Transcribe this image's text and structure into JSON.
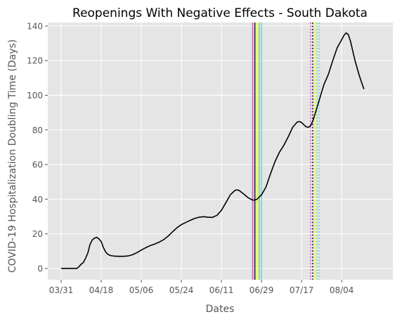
{
  "chart_data": {
    "type": "line",
    "title": "Reopenings With Negative Effects - South Dakota",
    "xlabel": "Dates",
    "ylabel": "COVID-19 Hospitalization Doubling Time (Days)",
    "ylim": [
      -6.5,
      142
    ],
    "xlim": [
      "2020-03-25",
      "2020-08-27"
    ],
    "x_ticks": [
      "2020-03-31",
      "2020-04-18",
      "2020-05-06",
      "2020-05-24",
      "2020-06-11",
      "2020-06-29",
      "2020-07-17",
      "2020-08-04"
    ],
    "x_tick_labels": [
      "03/31",
      "04/18",
      "05/06",
      "05/24",
      "06/11",
      "06/29",
      "07/17",
      "08/04"
    ],
    "y_ticks": [
      0,
      20,
      40,
      60,
      80,
      100,
      120,
      140
    ],
    "y_tick_labels": [
      "0",
      "20",
      "40",
      "60",
      "80",
      "100",
      "120",
      "140"
    ],
    "grid": true,
    "background": "#e5e5e5",
    "series": [
      {
        "color": "#000000",
        "points": [
          [
            "2020-03-31",
            0
          ],
          [
            "2020-04-01",
            0
          ],
          [
            "2020-04-03",
            0
          ],
          [
            "2020-04-05",
            0
          ],
          [
            "2020-04-07",
            0
          ],
          [
            "2020-04-08",
            1
          ],
          [
            "2020-04-09",
            2.5
          ],
          [
            "2020-04-10",
            3.5
          ],
          [
            "2020-04-11",
            6
          ],
          [
            "2020-04-12",
            9
          ],
          [
            "2020-04-13",
            14
          ],
          [
            "2020-04-14",
            16.5
          ],
          [
            "2020-04-15",
            17.5
          ],
          [
            "2020-04-16",
            18
          ],
          [
            "2020-04-17",
            17
          ],
          [
            "2020-04-18",
            15.5
          ],
          [
            "2020-04-19",
            12
          ],
          [
            "2020-04-20",
            9.5
          ],
          [
            "2020-04-21",
            8.2
          ],
          [
            "2020-04-22",
            7.5
          ],
          [
            "2020-04-24",
            7.1
          ],
          [
            "2020-04-26",
            7
          ],
          [
            "2020-04-28",
            7
          ],
          [
            "2020-04-30",
            7.2
          ],
          [
            "2020-05-02",
            7.9
          ],
          [
            "2020-05-04",
            9.1
          ],
          [
            "2020-05-06",
            10.6
          ],
          [
            "2020-05-08",
            12
          ],
          [
            "2020-05-10",
            13.2
          ],
          [
            "2020-05-12",
            14.1
          ],
          [
            "2020-05-14",
            15.2
          ],
          [
            "2020-05-16",
            16.6
          ],
          [
            "2020-05-18",
            18.6
          ],
          [
            "2020-05-20",
            21.1
          ],
          [
            "2020-05-22",
            23.5
          ],
          [
            "2020-05-24",
            25.3
          ],
          [
            "2020-05-26",
            26.6
          ],
          [
            "2020-05-28",
            27.8
          ],
          [
            "2020-05-30",
            28.9
          ],
          [
            "2020-06-01",
            29.6
          ],
          [
            "2020-06-03",
            29.9
          ],
          [
            "2020-06-05",
            29.6
          ],
          [
            "2020-06-07",
            29.5
          ],
          [
            "2020-06-09",
            30.7
          ],
          [
            "2020-06-11",
            33.6
          ],
          [
            "2020-06-13",
            38
          ],
          [
            "2020-06-15",
            42.5
          ],
          [
            "2020-06-17",
            45
          ],
          [
            "2020-06-18",
            45.4
          ],
          [
            "2020-06-19",
            45
          ],
          [
            "2020-06-21",
            43
          ],
          [
            "2020-06-23",
            40.8
          ],
          [
            "2020-06-25",
            39.5
          ],
          [
            "2020-06-26",
            39.5
          ],
          [
            "2020-06-27",
            40
          ],
          [
            "2020-06-29",
            42.5
          ],
          [
            "2020-07-01",
            47
          ],
          [
            "2020-07-03",
            54.5
          ],
          [
            "2020-07-05",
            61.5
          ],
          [
            "2020-07-07",
            67
          ],
          [
            "2020-07-09",
            71
          ],
          [
            "2020-07-11",
            76
          ],
          [
            "2020-07-13",
            81.5
          ],
          [
            "2020-07-15",
            84.5
          ],
          [
            "2020-07-16",
            84.8
          ],
          [
            "2020-07-17",
            84.3
          ],
          [
            "2020-07-18",
            83
          ],
          [
            "2020-07-19",
            81.8
          ],
          [
            "2020-07-20",
            81.5
          ],
          [
            "2020-07-21",
            82.3
          ],
          [
            "2020-07-22",
            85
          ],
          [
            "2020-07-23",
            89
          ],
          [
            "2020-07-25",
            97.5
          ],
          [
            "2020-07-27",
            106
          ],
          [
            "2020-07-29",
            112
          ],
          [
            "2020-07-31",
            120
          ],
          [
            "2020-08-02",
            127.5
          ],
          [
            "2020-08-04",
            132
          ],
          [
            "2020-08-05",
            134.5
          ],
          [
            "2020-08-06",
            136
          ],
          [
            "2020-08-07",
            135
          ],
          [
            "2020-08-08",
            131
          ],
          [
            "2020-08-10",
            120
          ],
          [
            "2020-08-12",
            111
          ],
          [
            "2020-08-14",
            103.5
          ]
        ]
      }
    ],
    "vlines": [
      {
        "date": "2020-06-25",
        "color": "#cc66cc",
        "style": "solid"
      },
      {
        "date": "2020-06-26",
        "color": "#222222",
        "style": "solid"
      },
      {
        "date": "2020-06-27",
        "color": "#ffff00",
        "style": "solid"
      },
      {
        "date": "2020-06-28",
        "color": "#44ff44",
        "style": "solid"
      },
      {
        "date": "2020-06-29",
        "color": "#55ddff",
        "style": "solid"
      },
      {
        "date": "2020-07-21",
        "color": "#cc66cc",
        "style": "dotted"
      },
      {
        "date": "2020-07-22",
        "color": "#222222",
        "style": "dotted"
      },
      {
        "date": "2020-07-23",
        "color": "#ffff00",
        "style": "dotted"
      },
      {
        "date": "2020-07-24",
        "color": "#44ff44",
        "style": "dotted"
      },
      {
        "date": "2020-07-25",
        "color": "#55ddff",
        "style": "dotted"
      }
    ]
  }
}
